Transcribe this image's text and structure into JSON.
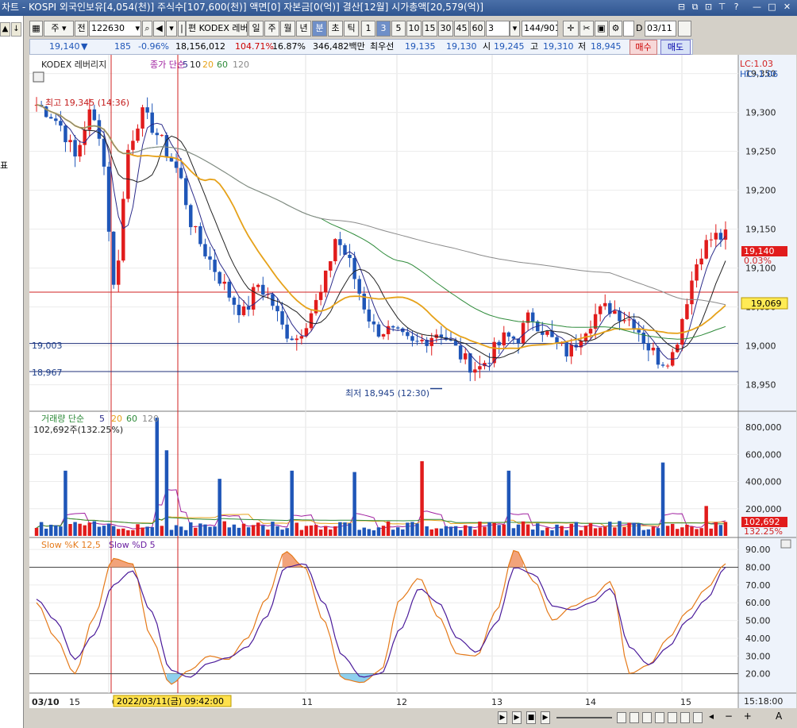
{
  "window": {
    "title": "차트 - KOSPI 외국인보유[4,054(천)] 주식수[107,600(천)] 액면[0] 자본금[0(억)] 결산[12월] 시가총액[20,579(억)]",
    "controls": [
      "⊟",
      "⧉",
      "⊡",
      "?",
      "—",
      "□",
      "✕"
    ]
  },
  "left_panel": {
    "label": "표"
  },
  "toolbar": {
    "type": "주",
    "mode": "전",
    "code": "122630",
    "name": "KODEX 레버",
    "periods": [
      "일",
      "주",
      "월",
      "년",
      "분",
      "초",
      "틱"
    ],
    "selected_period": "분",
    "intervals": [
      "1",
      "3",
      "5",
      "10",
      "15",
      "30",
      "45",
      "60"
    ],
    "selected_interval": "3",
    "step": "3",
    "count": "144/901",
    "date": "03/11"
  },
  "info": {
    "price": "19,140",
    "arrow": "▼",
    "change": "185",
    "change_pct": "-0.96%",
    "volume": "18,156,012",
    "vol_ratio": "104.71%",
    "turnover": "16.87%",
    "amount": "346,482백만",
    "best": "최우선",
    "bid": "19,135",
    "ask": "19,130",
    "open_lbl": "시",
    "open": "19,245",
    "high_lbl": "고",
    "high": "19,310",
    "low_lbl": "저",
    "low": "18,945"
  },
  "buttons": {
    "buy": "매수",
    "sell": "매도"
  },
  "price_panel": {
    "title": "KODEX 레버리지",
    "ma_label": "종가 단순",
    "ma_periods": [
      "5",
      "10",
      "20",
      "60",
      "120"
    ],
    "lc": "LC:1.03",
    "hc": "HC:-1.06",
    "high_marker": "최고 19,345 (14:36)",
    "low_marker": "최저 18,945 (12:30)",
    "line_a": "19,003",
    "line_b": "18,967",
    "last_price": "19,140",
    "last_pct": "0.03%",
    "hline_value": "19,069",
    "yticks": [
      "19,350",
      "19,300",
      "19,250",
      "19,200",
      "19,150",
      "19,100",
      "19,050",
      "19,000",
      "18,950"
    ]
  },
  "volume_panel": {
    "title": "거래량 단순",
    "periods": [
      "5",
      "20",
      "60",
      "120"
    ],
    "current": "102,692주(132.25%)",
    "yticks": [
      "800,000",
      "600,000",
      "400,000",
      "200,000"
    ],
    "last_value": "102,692",
    "last_pct": "132.25%"
  },
  "stoch_panel": {
    "title": "Slow %K 12,5",
    "title2": "Slow %D 5",
    "yticks": [
      "90.00",
      "80.00",
      "70.00",
      "60.00",
      "50.00",
      "40.00",
      "30.00",
      "20.00"
    ]
  },
  "xaxis": {
    "labels": [
      "03/10",
      "15",
      "03",
      "11",
      "12",
      "13",
      "14",
      "15"
    ],
    "cursor_date": "2022/03/11(금) 09:42:00",
    "time": "15:18:00"
  },
  "colors": {
    "up": "#e11c1c",
    "down": "#1f56b8",
    "ma5": "#2b2b8a",
    "ma10": "#222222",
    "ma20": "#e6a21a",
    "ma60": "#2e8b3a",
    "ma120": "#8a8a8a",
    "hline": "#d22222"
  },
  "chart_data": [
    {
      "type": "candlestick",
      "title": "KODEX 레버리지",
      "x_range": [
        "03/10 15:00",
        "03/15 15:18"
      ],
      "ylim": [
        18920,
        19370
      ],
      "close_path": [
        19310,
        19300,
        19280,
        19240,
        19300,
        19270,
        19060,
        19250,
        19300,
        19280,
        19250,
        19220,
        19150,
        19120,
        19090,
        19060,
        19040,
        19080,
        19060,
        19020,
        19010,
        19040,
        19070,
        19140,
        19110,
        19060,
        19020,
        19020,
        19010,
        19000,
        19010,
        19020,
        19000,
        18980,
        18970,
        18990,
        19010,
        19010,
        19040,
        19020,
        19000,
        18990,
        19020,
        19040,
        19050,
        19040,
        19030,
        19000,
        18980,
        18990,
        19060,
        19120,
        19140,
        19140
      ],
      "marked_high": 19345,
      "marked_low": 18945,
      "last": 19140,
      "hlines": [
        19069,
        19003,
        18967
      ]
    },
    {
      "type": "bar",
      "title": "거래량",
      "ylim": [
        0,
        900000
      ],
      "last": 102692,
      "spikes": [
        480000,
        870000,
        630000,
        420000,
        480000,
        470000,
        550000,
        480000,
        540000,
        220000
      ]
    },
    {
      "type": "line",
      "title": "Slow %K 12,5 / Slow %D 5",
      "ylim": [
        10,
        95
      ],
      "hlines": [
        80,
        20
      ],
      "series": [
        {
          "name": "Slow %K",
          "values": [
            60,
            40,
            20,
            52,
            85,
            82,
            40,
            14,
            22,
            30,
            28,
            40,
            62,
            89,
            80,
            50,
            17,
            15,
            22,
            62,
            74,
            52,
            31,
            30,
            55,
            90,
            72,
            50,
            58,
            63,
            72,
            20,
            25,
            40,
            55,
            68,
            82
          ]
        },
        {
          "name": "Slow %D",
          "values": [
            62,
            50,
            28,
            42,
            70,
            78,
            55,
            22,
            18,
            26,
            29,
            35,
            52,
            80,
            82,
            60,
            30,
            18,
            20,
            45,
            68,
            60,
            40,
            32,
            48,
            80,
            76,
            58,
            56,
            60,
            68,
            35,
            25,
            35,
            50,
            62,
            80
          ]
        }
      ]
    }
  ]
}
